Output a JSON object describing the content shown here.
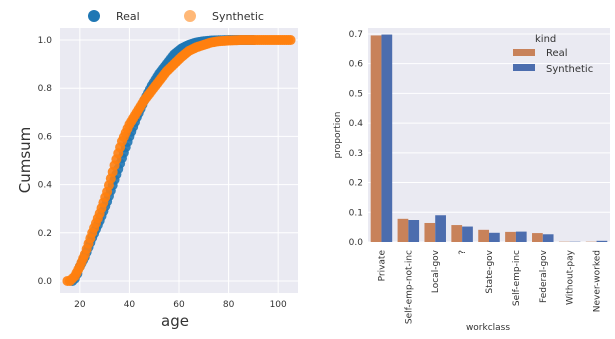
{
  "chart_data": [
    {
      "type": "scatter",
      "xlabel": "age",
      "ylabel": "Cumsum",
      "xlim": [
        12,
        108
      ],
      "ylim": [
        -0.05,
        1.05
      ],
      "x_ticks": [
        "20",
        "40",
        "60",
        "80",
        "100"
      ],
      "y_ticks": [
        "0.0",
        "0.2",
        "0.4",
        "0.6",
        "0.8",
        "1.0"
      ],
      "grid": true,
      "legend_position": "top",
      "colors": {
        "Real": "#1f77b4",
        "Synthetic": "#ff7f0e"
      },
      "series": [
        {
          "name": "Real",
          "x": [
            17,
            18,
            19,
            20,
            22,
            25,
            28,
            31,
            34,
            37,
            40,
            43,
            46,
            49,
            52,
            55,
            58,
            61,
            64,
            67,
            70,
            73,
            76,
            80,
            85,
            90
          ],
          "y": [
            0.0,
            0.01,
            0.03,
            0.06,
            0.1,
            0.18,
            0.25,
            0.33,
            0.42,
            0.51,
            0.6,
            0.68,
            0.75,
            0.81,
            0.86,
            0.9,
            0.94,
            0.965,
            0.98,
            0.99,
            0.995,
            0.998,
            0.999,
            1.0,
            1.0,
            1.0
          ]
        },
        {
          "name": "Synthetic",
          "x": [
            15,
            16,
            17,
            18,
            20,
            22,
            25,
            28,
            31,
            34,
            37,
            40,
            43,
            46,
            49,
            52,
            55,
            58,
            61,
            64,
            67,
            70,
            73,
            76,
            80,
            85,
            90,
            95,
            100,
            105
          ],
          "y": [
            0.0,
            0.0,
            0.01,
            0.02,
            0.06,
            0.11,
            0.2,
            0.28,
            0.37,
            0.48,
            0.58,
            0.65,
            0.7,
            0.75,
            0.79,
            0.83,
            0.87,
            0.9,
            0.93,
            0.955,
            0.97,
            0.98,
            0.99,
            0.995,
            0.998,
            1.0,
            1.0,
            1.0,
            1.0,
            1.0
          ]
        }
      ]
    },
    {
      "type": "bar",
      "xlabel": "workclass",
      "ylabel": "proportion",
      "ylim": [
        0,
        0.72
      ],
      "y_ticks": [
        "0.0",
        "0.1",
        "0.2",
        "0.3",
        "0.4",
        "0.5",
        "0.6",
        "0.7"
      ],
      "grid": true,
      "legend_title": "kind",
      "legend_position": "top-right",
      "categories": [
        "Private",
        "Self-emp-not-inc",
        "Local-gov",
        "?",
        "State-gov",
        "Self-emp-inc",
        "Federal-gov",
        "Without-pay",
        "Never-worked"
      ],
      "colors": {
        "Real": "#c8825a",
        "Synthetic": "#4c6dae"
      },
      "series": [
        {
          "name": "Real",
          "values": [
            0.695,
            0.078,
            0.064,
            0.057,
            0.041,
            0.034,
            0.03,
            0.001,
            0.001
          ]
        },
        {
          "name": "Synthetic",
          "values": [
            0.698,
            0.074,
            0.09,
            0.052,
            0.031,
            0.035,
            0.026,
            0.001,
            0.004
          ]
        }
      ]
    }
  ]
}
